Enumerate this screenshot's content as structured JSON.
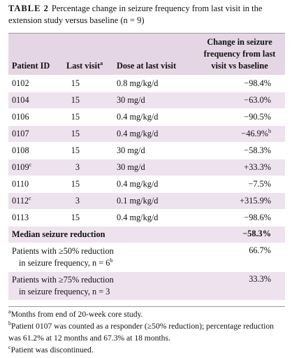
{
  "caption": {
    "label": "TABLE 2",
    "text": "Percentage change in seizure frequency from last visit in the extension study versus baseline (n = 9)"
  },
  "table": {
    "header": [
      "Patient ID",
      {
        "text": "Last visit",
        "sup": "a"
      },
      "Dose at last visit",
      "Change in seizure frequency from last visit vs baseline"
    ],
    "rows": [
      [
        "0102",
        "15",
        "0.8 mg/kg/d",
        "−98.4%"
      ],
      [
        "0104",
        "15",
        "30 mg/d",
        "−63.0%"
      ],
      [
        "0106",
        "15",
        "0.4 mg/kg/d",
        "−90.5%"
      ],
      [
        "0107",
        "15",
        "0.4 mg/kg/d",
        {
          "text": "−46.9%",
          "sup": "b"
        }
      ],
      [
        "0108",
        "15",
        "30 mg/d",
        "−58.3%"
      ],
      [
        {
          "text": "0109",
          "sup": "c"
        },
        "3",
        "30 mg/d",
        "+33.3%"
      ],
      [
        "0110",
        "15",
        "0.4 mg/kg/d",
        "−7.5%"
      ],
      [
        {
          "text": "0112",
          "sup": "c"
        },
        "3",
        "0.1 mg/kg/d",
        "+315.9%"
      ],
      [
        "0113",
        "15",
        "0.4 mg/kg/d",
        "−98.6%"
      ]
    ],
    "summary": [
      {
        "label": "Median seizure reduction",
        "value": "−58.3%"
      },
      {
        "label": {
          "text": "Patients with ≥50% reduction in seizure frequency, n = 6",
          "sup": "b"
        },
        "value": "66.7%"
      },
      {
        "label": "Patients with ≥75% reduction in seizure frequency, n = 3",
        "value": "33.3%"
      }
    ]
  },
  "footnotes": [
    {
      "mark": "a",
      "text": "Months from end of 20-week core study."
    },
    {
      "mark": "b",
      "text": "Patient 0107 was counted as a responder (≥50% reduction); percentage reduction was 61.2% at 12 months and 67.3% at 18 months."
    },
    {
      "mark": "c",
      "text": "Patient was discontinued."
    }
  ]
}
